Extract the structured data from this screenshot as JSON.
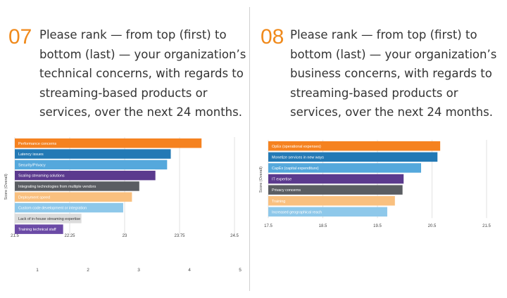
{
  "panels": [
    {
      "number": "07",
      "question": "Please rank — from top (first) to\nbottom (last) — your organization’s\ntechnical concerns, with regards to\nstreaming-based products or\nservices, over the next 24 months."
    },
    {
      "number": "08",
      "question": "Please rank — from top (first) to\nbottom (last) — your organization’s\nbusiness concerns, with regards to\nstreaming-based products or\nservices, over the next 24 months."
    }
  ],
  "chart_data": [
    {
      "type": "bar",
      "orientation": "horizontal",
      "ylabel": "Score (Overall)",
      "xlim": [
        21.5,
        24.5
      ],
      "xticks": [
        "21.5",
        "22.25",
        "23",
        "23.75",
        "24.5"
      ],
      "rank_scale_labels": [
        "1",
        "2",
        "3",
        "4",
        "5"
      ],
      "grid": true,
      "categories": [
        "Performance concerns",
        "Latency issues",
        "Security/Privacy",
        "Scaling streaming solutions",
        "Integrating technologies from multiple vendors",
        "Deployment speed",
        "Custom code development or integration",
        "Lack of in-house streaming expertise",
        "Training technical staff"
      ],
      "values": [
        24.05,
        23.63,
        23.58,
        23.42,
        23.2,
        23.1,
        22.98,
        22.41,
        22.16
      ],
      "colors": [
        "#f58220",
        "#2379b5",
        "#55a8dc",
        "#5b3a8e",
        "#5a5d62",
        "#f9c07f",
        "#8ec8ea",
        "#dcdcdc",
        "#6b4aa6"
      ],
      "label_colors": [
        "#ffffff",
        "#ffffff",
        "#ffffff",
        "#ffffff",
        "#ffffff",
        "#ffffff",
        "#ffffff",
        "#333333",
        "#ffffff"
      ]
    },
    {
      "type": "bar",
      "orientation": "horizontal",
      "ylabel": "Score (Overall)",
      "xlim": [
        17.5,
        21.5
      ],
      "xticks": [
        "17.5",
        "18.5",
        "19.5",
        "20.5",
        "21.5"
      ],
      "grid": true,
      "categories": [
        "OpEx (operational expenses)",
        "Monetize services in new ways",
        "CapEx (capital expenditure)",
        "IT expertise",
        "Privacy concerns",
        "Training",
        "Increased geographical reach"
      ],
      "values": [
        20.65,
        20.6,
        20.3,
        19.98,
        19.96,
        19.82,
        19.68
      ],
      "colors": [
        "#f58220",
        "#2379b5",
        "#55a8dc",
        "#5b3a8e",
        "#5a5d62",
        "#f9c07f",
        "#8ec8ea"
      ],
      "label_colors": [
        "#ffffff",
        "#ffffff",
        "#ffffff",
        "#ffffff",
        "#ffffff",
        "#ffffff",
        "#ffffff"
      ]
    }
  ]
}
